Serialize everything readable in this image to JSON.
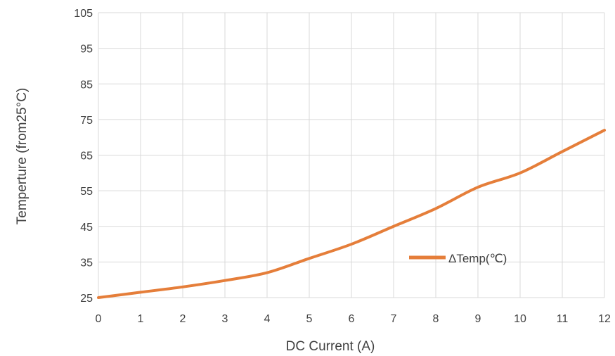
{
  "chart_data": {
    "type": "line",
    "xlabel": "DC  Current (A)",
    "ylabel": "Temperture (from25°C)",
    "xlim": [
      0,
      12
    ],
    "ylim": [
      25,
      105
    ],
    "x_ticks": [
      "0",
      "1",
      "2",
      "3",
      "4",
      "5",
      "6",
      "7",
      "8",
      "9",
      "10",
      "11",
      "12"
    ],
    "y_ticks": [
      "25",
      "35",
      "45",
      "55",
      "65",
      "75",
      "85",
      "95",
      "105"
    ],
    "grid": true,
    "legend_position": "center-right",
    "series": [
      {
        "name": "ΔTemp(℃)",
        "color": "#e57e3a",
        "x": [
          0,
          1,
          2,
          3,
          4,
          5,
          6,
          7,
          8,
          9,
          10,
          11,
          12
        ],
        "y": [
          25,
          26.5,
          28,
          29.8,
          32,
          36,
          40,
          45,
          50,
          56,
          60,
          66,
          72
        ]
      }
    ]
  }
}
